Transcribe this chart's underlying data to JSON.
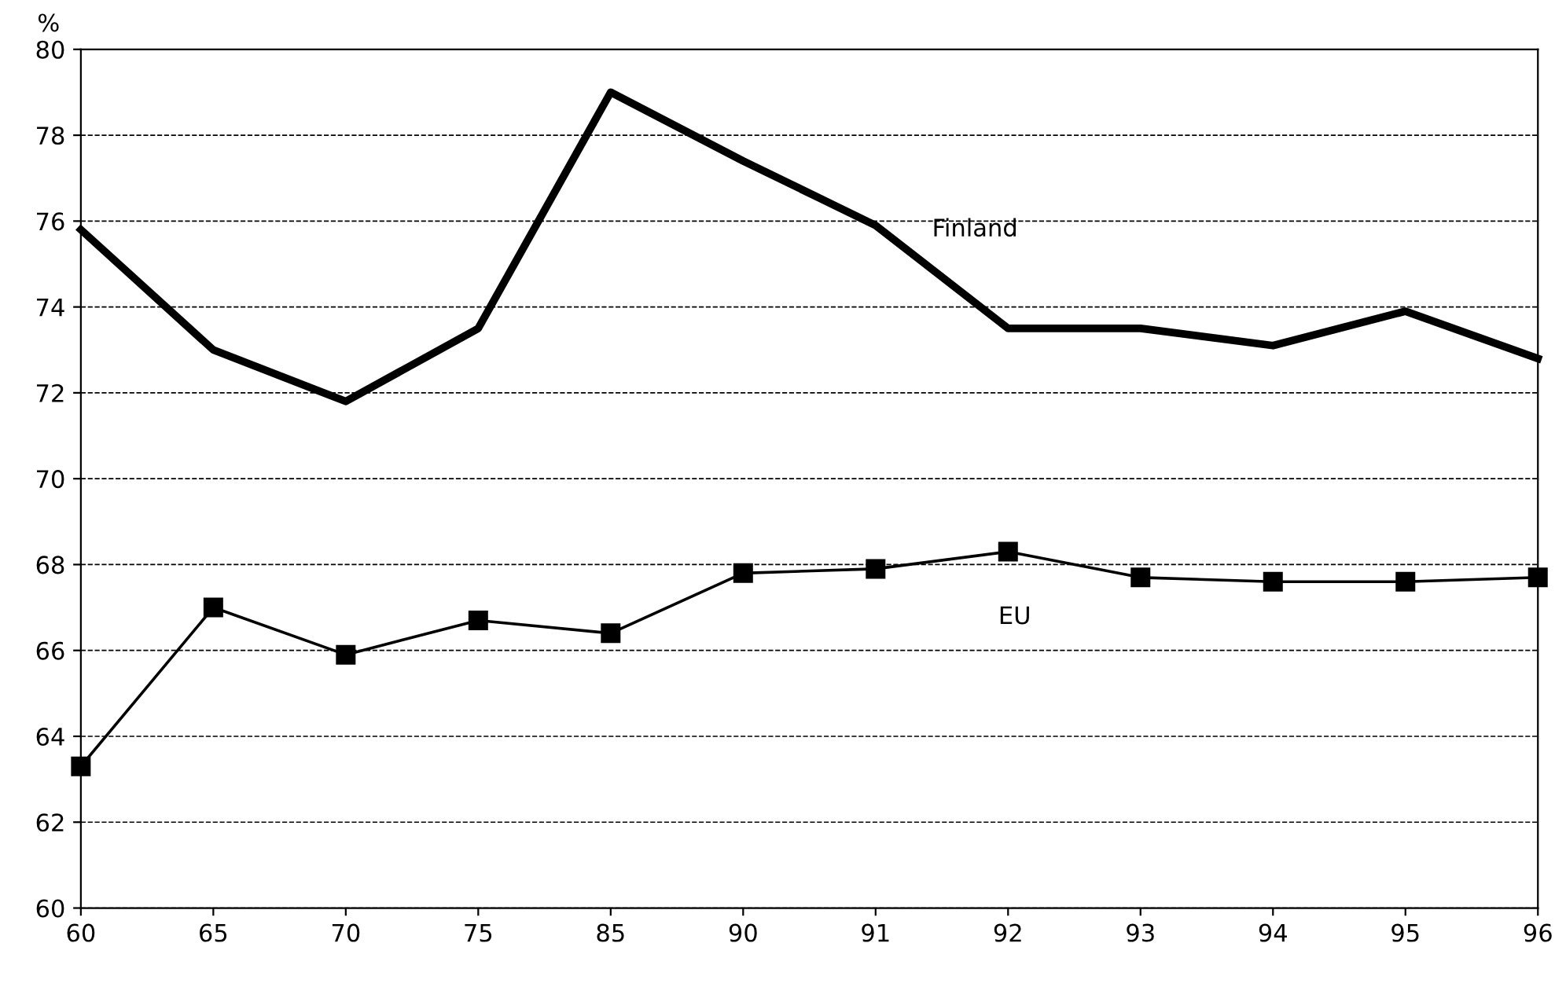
{
  "chart_data": {
    "type": "line",
    "ylabel": "%",
    "categories": [
      "60",
      "65",
      "70",
      "75",
      "85",
      "90",
      "91",
      "92",
      "93",
      "94",
      "95",
      "96"
    ],
    "ylim": [
      60,
      80
    ],
    "yticks": [
      60,
      62,
      64,
      66,
      68,
      70,
      72,
      74,
      76,
      78,
      80
    ],
    "grid": "y",
    "legend": false,
    "series": [
      {
        "name": "Finland",
        "color": "#000000",
        "marker": "none",
        "values": [
          75.8,
          73.0,
          71.8,
          73.5,
          79.0,
          77.4,
          75.9,
          73.5,
          73.5,
          73.1,
          73.9,
          72.8
        ]
      },
      {
        "name": "EU",
        "color": "#000000",
        "marker": "square",
        "values": [
          63.3,
          67.0,
          65.9,
          66.7,
          66.4,
          67.8,
          67.9,
          68.3,
          67.7,
          67.6,
          67.6,
          67.7
        ]
      }
    ]
  }
}
